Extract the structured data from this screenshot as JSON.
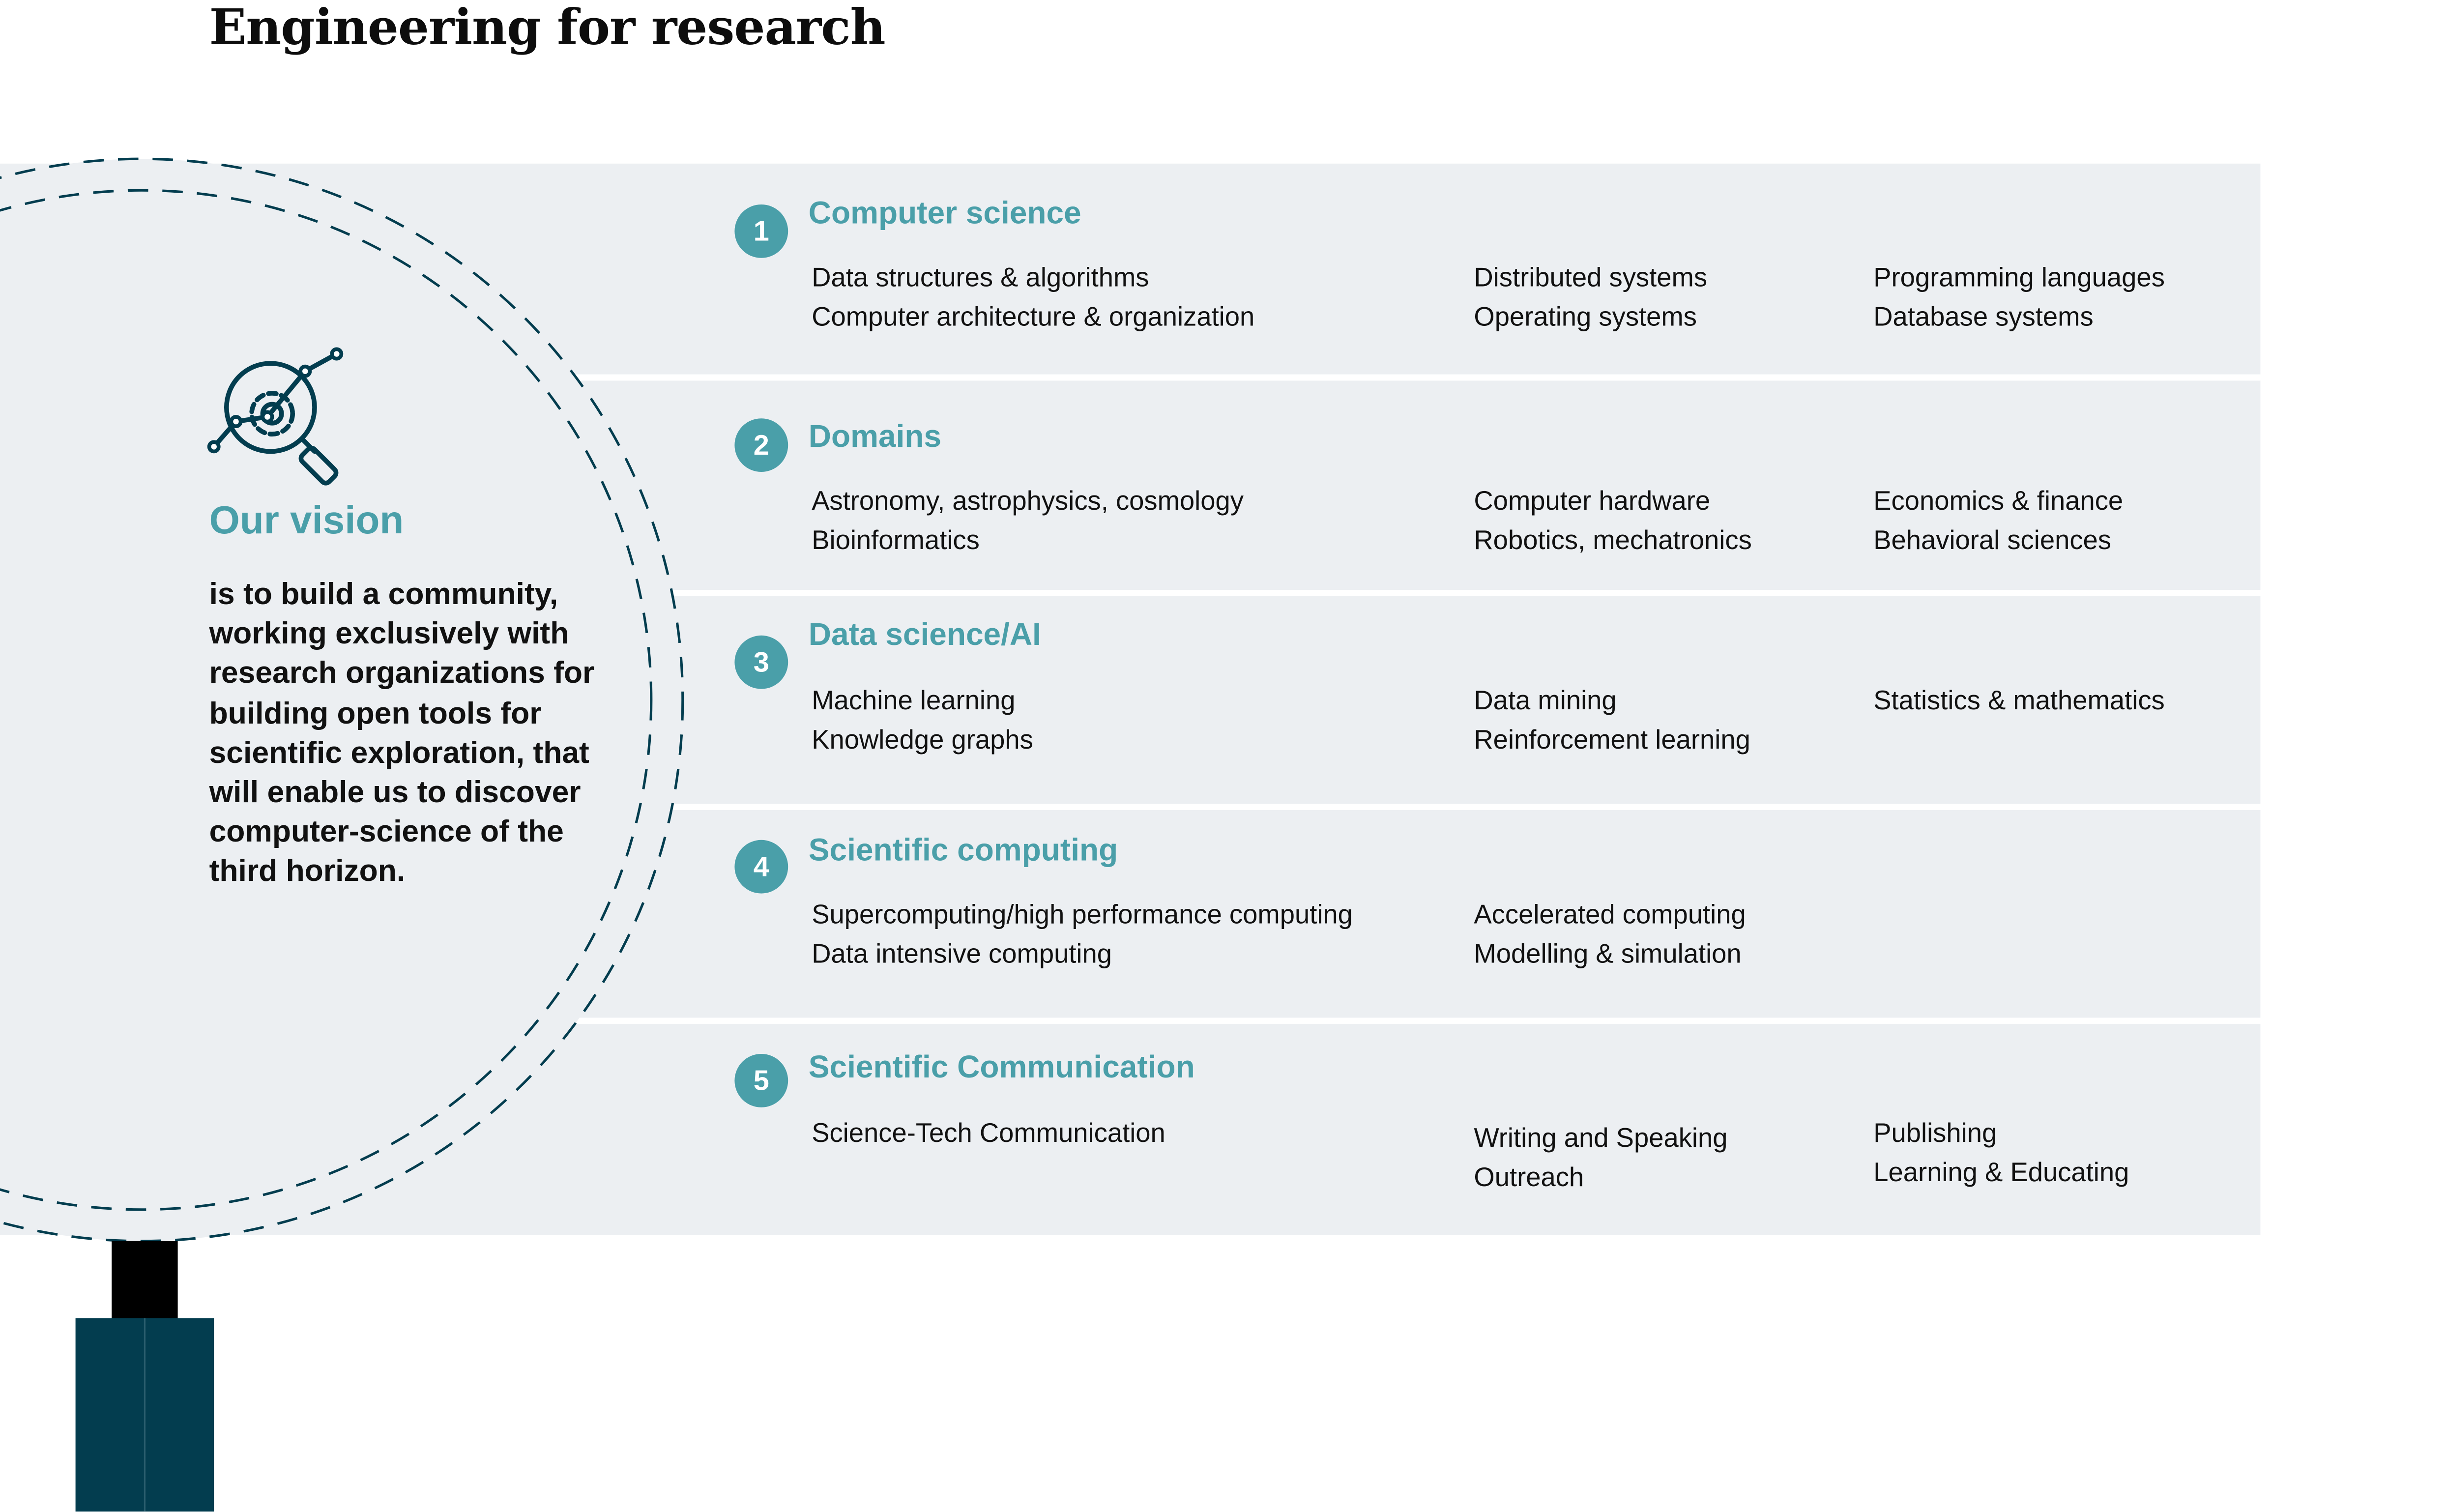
{
  "page": {
    "title": "Engineering for research"
  },
  "vision": {
    "title": "Our vision",
    "text": "is to build a community, working exclusively with research organizations for building open tools for scientific exploration, that will enable us to discover computer-science of the third horizon.",
    "icon": "search-analytics-icon"
  },
  "colors": {
    "accent": "#4a9fa9",
    "panel": "#eceff2",
    "dark_teal": "#033d4f",
    "text": "#111111"
  },
  "sections": [
    {
      "number": "1",
      "title": "Computer science",
      "col1": [
        "Data structures & algorithms",
        "Computer architecture & organization"
      ],
      "col2": [
        "Distributed systems",
        "Operating systems"
      ],
      "col3": [
        "Programming languages",
        "Database systems"
      ]
    },
    {
      "number": "2",
      "title": "Domains",
      "col1": [
        "Astronomy, astrophysics, cosmology",
        "Bioinformatics"
      ],
      "col2": [
        "Computer hardware",
        "Robotics, mechatronics"
      ],
      "col3": [
        "Economics & finance",
        "Behavioral sciences"
      ]
    },
    {
      "number": "3",
      "title": "Data science/AI",
      "col1": [
        "Machine learning",
        "Knowledge graphs"
      ],
      "col2": [
        "Data mining",
        "Reinforcement learning"
      ],
      "col3": [
        "Statistics & mathematics"
      ]
    },
    {
      "number": "4",
      "title": "Scientific computing",
      "col1": [
        "Supercomputing/high performance computing",
        "Data intensive computing"
      ],
      "col2": [
        "Accelerated computing",
        "Modelling & simulation"
      ],
      "col3": []
    },
    {
      "number": "5",
      "title": "Scientific Communication",
      "col1": [
        "Science-Tech Communication"
      ],
      "col2": [
        "Writing and Speaking",
        "Outreach"
      ],
      "col3": [
        "Publishing",
        "Learning & Educating"
      ]
    }
  ]
}
